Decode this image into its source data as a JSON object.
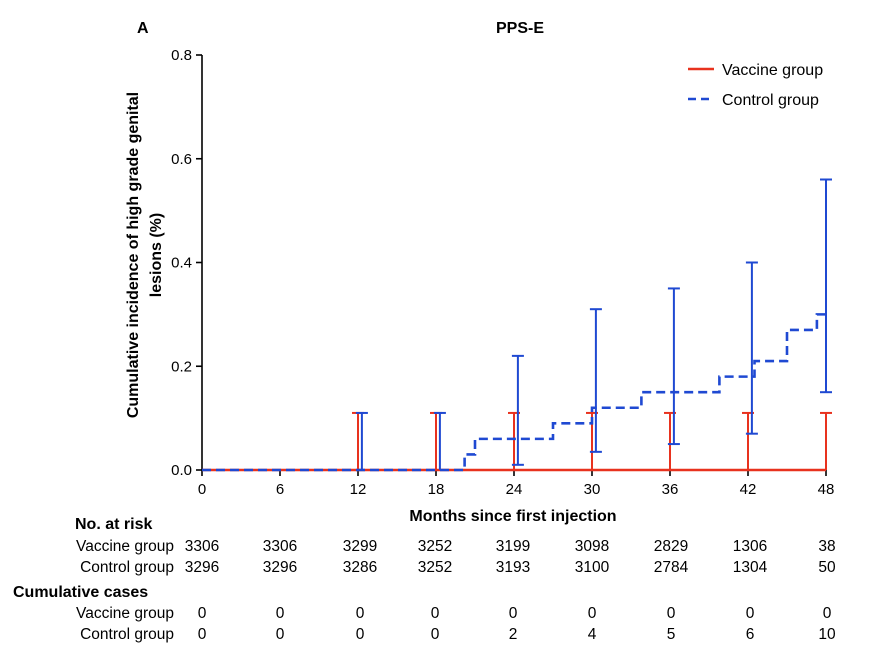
{
  "panel_label": "A",
  "chart_data": {
    "type": "line",
    "title": "PPS-E",
    "xlabel": "Months since first injection",
    "ylabel_lines": [
      "Cumulative incidence of high grade genital",
      "lesions (%)"
    ],
    "xlim": [
      0,
      48
    ],
    "ylim": [
      0,
      0.8
    ],
    "xticks": [
      0,
      6,
      12,
      18,
      24,
      30,
      36,
      42,
      48
    ],
    "yticks": [
      "0.0",
      "0.2",
      "0.4",
      "0.6",
      "0.8"
    ],
    "legend_position": "top-right",
    "series": [
      {
        "name": "Vaccine group",
        "color": "#e8321e",
        "dash": "solid",
        "steps": [
          [
            0,
            0.0
          ],
          [
            48,
            0.0
          ]
        ],
        "error_bars": [
          {
            "x": 12,
            "low": 0.0,
            "high": 0.11
          },
          {
            "x": 18,
            "low": 0.0,
            "high": 0.11
          },
          {
            "x": 24,
            "low": 0.0,
            "high": 0.11
          },
          {
            "x": 30,
            "low": 0.0,
            "high": 0.11
          },
          {
            "x": 36,
            "low": 0.0,
            "high": 0.11
          },
          {
            "x": 42,
            "low": 0.0,
            "high": 0.11
          },
          {
            "x": 48,
            "low": 0.0,
            "high": 0.11
          }
        ]
      },
      {
        "name": "Control group",
        "color": "#1f49d2",
        "dash": "dashed",
        "steps": [
          [
            0,
            0.0
          ],
          [
            20.2,
            0.03
          ],
          [
            21.0,
            0.06
          ],
          [
            27.0,
            0.09
          ],
          [
            30.0,
            0.12
          ],
          [
            33.8,
            0.15
          ],
          [
            39.8,
            0.18
          ],
          [
            42.5,
            0.21
          ],
          [
            45.0,
            0.27
          ],
          [
            47.3,
            0.3
          ],
          [
            48,
            0.3
          ]
        ],
        "error_bars": [
          {
            "x": 12.3,
            "low": 0.0,
            "high": 0.11
          },
          {
            "x": 18.3,
            "low": 0.0,
            "high": 0.11
          },
          {
            "x": 24.3,
            "low": 0.01,
            "high": 0.22
          },
          {
            "x": 30.3,
            "low": 0.035,
            "high": 0.31
          },
          {
            "x": 36.3,
            "low": 0.05,
            "high": 0.35
          },
          {
            "x": 42.3,
            "low": 0.07,
            "high": 0.4
          },
          {
            "x": 48.0,
            "low": 0.15,
            "high": 0.56
          }
        ]
      }
    ]
  },
  "risk_table": {
    "at_risk_heading": "No. at risk",
    "cumulative_heading": "Cumulative cases",
    "rows": [
      {
        "label": "Vaccine group",
        "values": [
          "3306",
          "3306",
          "3299",
          "3252",
          "3199",
          "3098",
          "2829",
          "1306",
          "38"
        ]
      },
      {
        "label": "Control group",
        "values": [
          "3296",
          "3296",
          "3286",
          "3252",
          "3193",
          "3100",
          "2784",
          "1304",
          "50"
        ]
      }
    ],
    "cumulative_rows": [
      {
        "label": "Vaccine group",
        "values": [
          "0",
          "0",
          "0",
          "0",
          "0",
          "0",
          "0",
          "0",
          "0"
        ]
      },
      {
        "label": "Control group",
        "values": [
          "0",
          "0",
          "0",
          "0",
          "2",
          "4",
          "5",
          "6",
          "10"
        ]
      }
    ]
  }
}
